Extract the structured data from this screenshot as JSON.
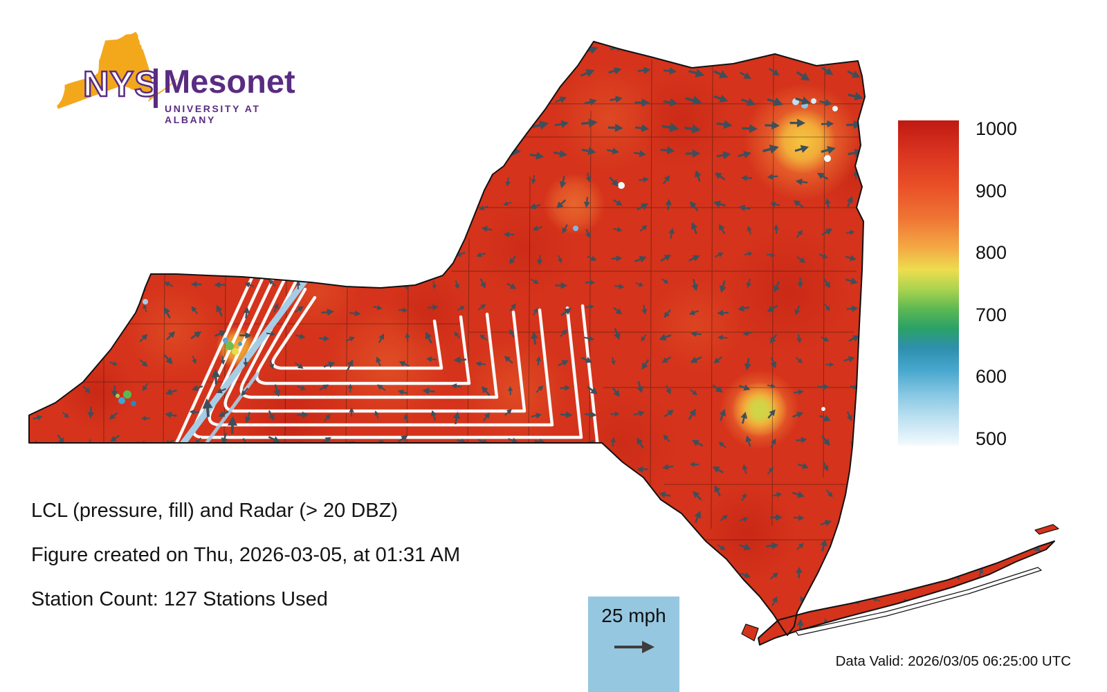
{
  "logo": {
    "acronym": "NYS",
    "name": "Mesonet",
    "subtitle": "UNIVERSITY AT ALBANY",
    "state_fill": "#F3A81B",
    "purple": "#592C82"
  },
  "colorbar": {
    "ticks": [
      "1000",
      "900",
      "800",
      "700",
      "600",
      "500"
    ],
    "orientation": "vertical",
    "top_color": "#BF1A12",
    "bottom_color": "#F4FBFE"
  },
  "captions": {
    "line1": "LCL (pressure, fill) and Radar (> 20 DBZ)",
    "line2": "Figure created on Thu, 2026-03-05, at 01:31 AM",
    "line3": "Station Count: 127 Stations Used"
  },
  "wind_legend": {
    "label": "25 mph",
    "box_color": "#96C7E0",
    "arrow_color": "#3D3D3D"
  },
  "footer": {
    "data_valid": "Data Valid: 2026/03/05 06:25:00 UTC"
  },
  "map": {
    "region": "New York State",
    "base_fill": "#D5331B",
    "outline_color": "#111111",
    "arrow_color": "#3E4F5A",
    "contour_color": "#FFFFFF",
    "radar_band_color": "#A5CDE6",
    "arrow_grid_spacing": 38
  }
}
